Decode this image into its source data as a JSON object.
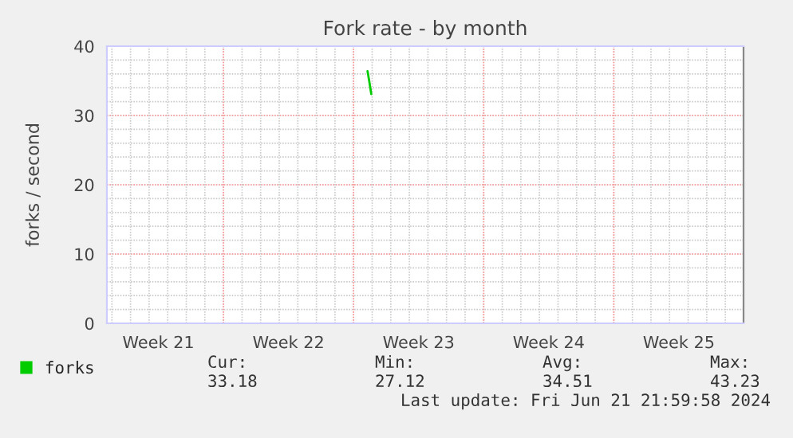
{
  "chart_data": {
    "type": "line",
    "title": "Fork rate - by month",
    "ylabel": "forks / second",
    "series": [
      {
        "name": "forks",
        "color": "#00cc00",
        "x": [
          "2024-06-03T18:00",
          "2024-06-03T20:10",
          "2024-06-03T22:50"
        ],
        "values": [
          36.4,
          35.0,
          33.1
        ]
      }
    ],
    "xlim": [
      "2024-05-20T17:30",
      "2024-06-23T23:30"
    ],
    "xticks": [
      {
        "value": "2024-05-23T12:00",
        "label": "Week 21"
      },
      {
        "value": "2024-05-27",
        "label": null
      },
      {
        "value": "2024-05-30T12:00",
        "label": "Week 22"
      },
      {
        "value": "2024-06-03",
        "label": null
      },
      {
        "value": "2024-06-06T12:00",
        "label": "Week 23"
      },
      {
        "value": "2024-06-10",
        "label": null
      },
      {
        "value": "2024-06-13T12:00",
        "label": "Week 24"
      },
      {
        "value": "2024-06-17",
        "label": null
      },
      {
        "value": "2024-06-20T12:00",
        "label": "Week 25"
      }
    ],
    "ylim": [
      0,
      40
    ],
    "yticks": [
      0,
      10,
      20,
      30,
      40
    ],
    "grid": true,
    "legend": "bottom left",
    "marker": "none",
    "line_style": "solid",
    "annotations": [
      "Cur:",
      "Min:",
      "Avg:",
      "Max:",
      "33.18",
      "27.12",
      "34.51",
      "43.23",
      "Last update: Fri Jun 21 21:59:58 2024"
    ]
  }
}
